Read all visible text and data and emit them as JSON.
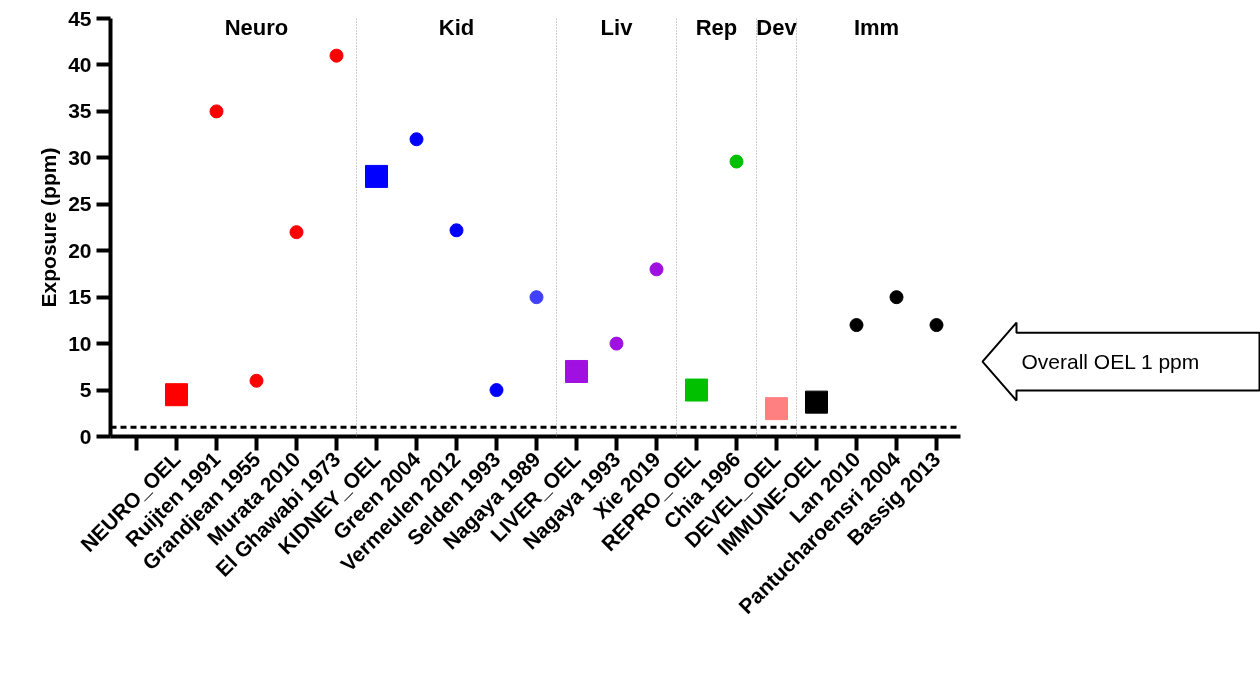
{
  "chart_data": {
    "type": "scatter",
    "ylabel": "Exposure (ppm)",
    "categories": [
      null,
      "NEURO_OEL",
      "Ruijten 1991",
      "Grandjean 1955",
      "Murata 2010",
      "El Ghawabi 1973",
      "KIDNEY_OEL",
      "Green 2004",
      "Vermeulen 2012",
      "Selden 1993",
      "Nagaya 1989",
      "LIVER_OEL",
      "Nagaya 1993",
      "Xie 2019",
      "REPRO_OEL",
      "Chia 1996",
      "DEVEL_OEL",
      "IMMUNE-OEL",
      "Lan 2010",
      "Pantucharoensri 2004",
      "Bassig 2013"
    ],
    "series": [
      {
        "marker": "square",
        "values": [
          null,
          4.5,
          null,
          null,
          null,
          null,
          28,
          null,
          null,
          null,
          null,
          7,
          null,
          null,
          5,
          null,
          3,
          3.7,
          null,
          null,
          null
        ],
        "colors": [
          null,
          "#ff0000",
          null,
          null,
          null,
          null,
          "#0000ff",
          null,
          null,
          null,
          null,
          "#a010e0",
          null,
          null,
          "#00c000",
          null,
          "#ff8080",
          "#000000",
          null,
          null,
          null
        ]
      },
      {
        "marker": "circle",
        "values": [
          null,
          null,
          35,
          6,
          22,
          41,
          null,
          32,
          22.2,
          5,
          15,
          null,
          10,
          18,
          null,
          29.6,
          null,
          null,
          12,
          15,
          12
        ],
        "colors": [
          null,
          null,
          "#ff0000",
          "#ff0000",
          "#ff0000",
          "#ff0000",
          null,
          "#0000ff",
          "#0000ff",
          "#0000ff",
          "#4040ff",
          null,
          "#a010e0",
          "#a010e0",
          null,
          "#00c000",
          null,
          null,
          "#000000",
          "#000000",
          "#000000"
        ]
      }
    ],
    "ylim": [
      0,
      45
    ],
    "yticks": [
      0,
      5,
      10,
      15,
      20,
      25,
      30,
      35,
      40,
      45
    ],
    "grid": false,
    "ref_lines": [
      {
        "axis": "y",
        "value": 1,
        "label": "Overall OEL 1 ppm",
        "line_style": "dashed",
        "color": "#000000"
      }
    ],
    "annotations": [
      "Neuro",
      "Kid",
      "Liv",
      "Rep",
      "Dev",
      "Imm"
    ]
  }
}
